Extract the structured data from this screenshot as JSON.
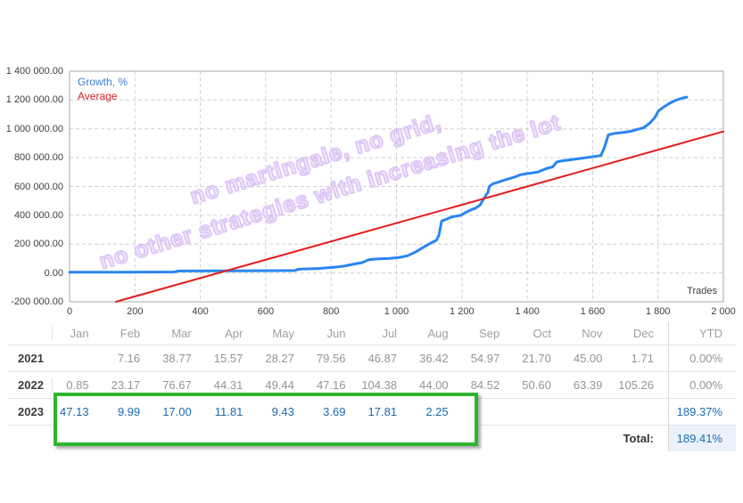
{
  "chart": {
    "legend": [
      {
        "label": "Growth, %",
        "color": "#3b7bd8"
      },
      {
        "label": "Average",
        "color": "#dd2020"
      }
    ],
    "trades_label": "Trades",
    "watermark": [
      "no martingale, no grid,",
      "no other strategies with increasing the lot"
    ],
    "y_ticks": [
      "1 400 000.00",
      "1 200 000.00",
      "1 000 000.00",
      "800 000.00",
      "600 000.00",
      "400 000.00",
      "200 000.00",
      "0.00",
      "-200 000.00"
    ],
    "x_ticks": [
      "0",
      "200",
      "400",
      "600",
      "800",
      "1 000",
      "1 200",
      "1 400",
      "1 600",
      "1 800",
      "2 000"
    ]
  },
  "chart_data": {
    "type": "line",
    "title": "",
    "xlabel": "Trades",
    "ylabel": "Growth, %",
    "xlim": [
      0,
      2000
    ],
    "ylim": [
      -200000,
      1400000
    ],
    "grid": true,
    "legend_position": "top-left",
    "series": [
      {
        "name": "Growth, %",
        "color": "#2a85f0",
        "points": [
          [
            0,
            5000
          ],
          [
            150,
            6000
          ],
          [
            320,
            7000
          ],
          [
            332,
            14000
          ],
          [
            500,
            15000
          ],
          [
            688,
            17000
          ],
          [
            700,
            26000
          ],
          [
            760,
            31000
          ],
          [
            800,
            38000
          ],
          [
            840,
            48000
          ],
          [
            870,
            62000
          ],
          [
            895,
            72000
          ],
          [
            915,
            92000
          ],
          [
            940,
            97000
          ],
          [
            980,
            101000
          ],
          [
            1010,
            108000
          ],
          [
            1035,
            120000
          ],
          [
            1060,
            148000
          ],
          [
            1085,
            182000
          ],
          [
            1105,
            208000
          ],
          [
            1122,
            226000
          ],
          [
            1130,
            262000
          ],
          [
            1138,
            360000
          ],
          [
            1152,
            372000
          ],
          [
            1168,
            388000
          ],
          [
            1182,
            394000
          ],
          [
            1196,
            400000
          ],
          [
            1212,
            420000
          ],
          [
            1228,
            438000
          ],
          [
            1242,
            450000
          ],
          [
            1256,
            472000
          ],
          [
            1266,
            512000
          ],
          [
            1274,
            540000
          ],
          [
            1280,
            560000
          ],
          [
            1284,
            600000
          ],
          [
            1294,
            618000
          ],
          [
            1308,
            628000
          ],
          [
            1332,
            646000
          ],
          [
            1360,
            664000
          ],
          [
            1380,
            682000
          ],
          [
            1402,
            690000
          ],
          [
            1432,
            700000
          ],
          [
            1460,
            726000
          ],
          [
            1478,
            736000
          ],
          [
            1490,
            770000
          ],
          [
            1505,
            778000
          ],
          [
            1535,
            786000
          ],
          [
            1565,
            795000
          ],
          [
            1595,
            805000
          ],
          [
            1625,
            815000
          ],
          [
            1636,
            870000
          ],
          [
            1648,
            958000
          ],
          [
            1666,
            968000
          ],
          [
            1696,
            976000
          ],
          [
            1716,
            983000
          ],
          [
            1736,
            996000
          ],
          [
            1756,
            1008000
          ],
          [
            1776,
            1042000
          ],
          [
            1790,
            1078000
          ],
          [
            1802,
            1126000
          ],
          [
            1818,
            1152000
          ],
          [
            1834,
            1176000
          ],
          [
            1852,
            1196000
          ],
          [
            1872,
            1212000
          ],
          [
            1888,
            1220000
          ]
        ]
      },
      {
        "name": "Average",
        "color": "#e51c1c",
        "points": [
          [
            141,
            -200000
          ],
          [
            2000,
            982000
          ]
        ]
      }
    ]
  },
  "table": {
    "months": [
      "Jan",
      "Feb",
      "Mar",
      "Apr",
      "May",
      "Jun",
      "Jul",
      "Aug",
      "Sep",
      "Oct",
      "Nov",
      "Dec"
    ],
    "ytd_label": "YTD",
    "rows": [
      {
        "year": "2021",
        "values": [
          "",
          "7.16",
          "38.77",
          "15.57",
          "28.27",
          "79.56",
          "46.87",
          "36.42",
          "54.97",
          "21.70",
          "45.00",
          "1.71"
        ],
        "ytd": "0.00%",
        "style": "gray"
      },
      {
        "year": "2022",
        "values": [
          "0.85",
          "23.17",
          "76.67",
          "44.31",
          "49.44",
          "47.16",
          "104.38",
          "44.00",
          "84.52",
          "50.60",
          "63.39",
          "105.26"
        ],
        "ytd": "0.00%",
        "style": "gray"
      },
      {
        "year": "2023",
        "values": [
          "47.13",
          "9.99",
          "17.00",
          "11.81",
          "9.43",
          "3.69",
          "17.81",
          "2.25",
          "",
          "",
          "",
          ""
        ],
        "ytd": "189.37%",
        "style": "blue"
      }
    ],
    "total_label": "Total:",
    "total_value": "189.41%"
  },
  "colors": {
    "growth_line": "#2a85f0",
    "average_line": "#e51c1c",
    "table_blue": "#1c6bb0",
    "table_gray": "#959595",
    "highlight_green": "#2db52d",
    "total_cell_bg": "#eaf1f9",
    "watermark": "#d9c2f1",
    "grid": "#d0d0d0"
  }
}
